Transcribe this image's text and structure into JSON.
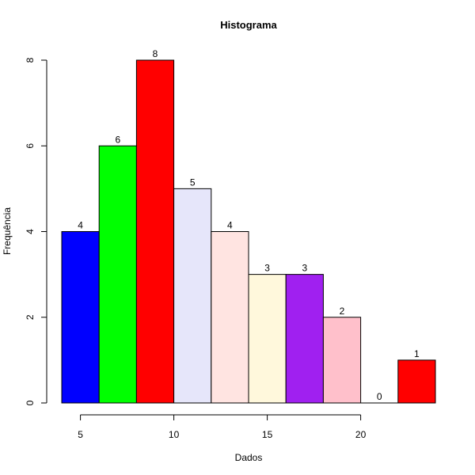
{
  "chart_data": {
    "type": "bar",
    "title": "Histograma",
    "xlabel": "Dados",
    "ylabel": "Frequência",
    "bins": [
      [
        4,
        6
      ],
      [
        6,
        8
      ],
      [
        8,
        10
      ],
      [
        10,
        12
      ],
      [
        12,
        14
      ],
      [
        14,
        16
      ],
      [
        16,
        18
      ],
      [
        18,
        20
      ],
      [
        20,
        22
      ],
      [
        22,
        24
      ]
    ],
    "values": [
      4,
      6,
      8,
      5,
      4,
      3,
      3,
      2,
      0,
      1
    ],
    "data_labels": [
      "4",
      "6",
      "8",
      "5",
      "4",
      "3",
      "3",
      "2",
      "0",
      "1"
    ],
    "colors": [
      "#0000ff",
      "#00ff00",
      "#ff0000",
      "#e6e6fa",
      "#ffe4e1",
      "#fff8dc",
      "#a020f0",
      "#ffc0cb",
      "#ffffff",
      "#ff0000"
    ],
    "xlim": [
      4,
      24
    ],
    "ylim": [
      0,
      8
    ],
    "x_ticks": [
      5,
      10,
      15,
      20
    ],
    "x_tick_labels": [
      "5",
      "10",
      "15",
      "20"
    ],
    "y_ticks": [
      0,
      2,
      4,
      6,
      8
    ],
    "y_tick_labels": [
      "0",
      "2",
      "4",
      "6",
      "8"
    ],
    "grid": false
  }
}
